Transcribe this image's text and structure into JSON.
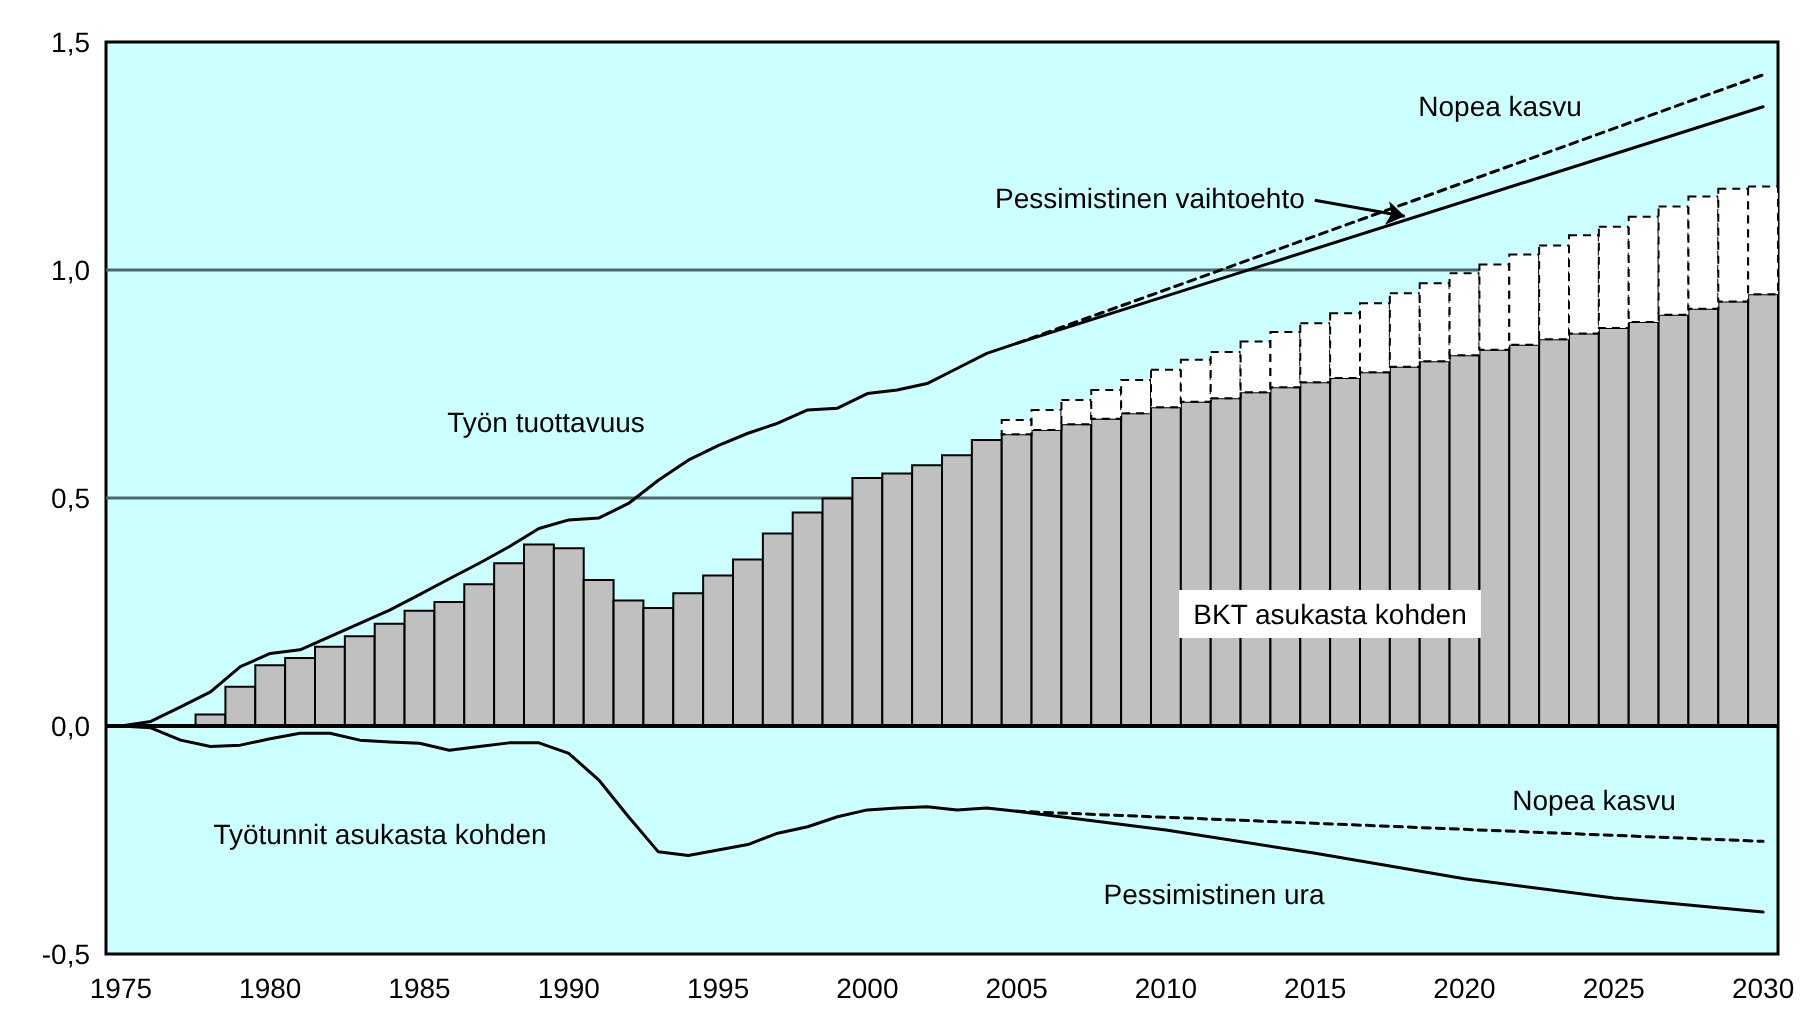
{
  "chart_data": {
    "type": "bar",
    "stacked": true,
    "xlim": [
      1974.5,
      2030.5
    ],
    "xticks": [
      1975,
      1980,
      1985,
      1990,
      1995,
      2000,
      2005,
      2010,
      2015,
      2020,
      2025,
      2030
    ],
    "ylim": [
      -0.5,
      1.5
    ],
    "yticks": [
      {
        "value": -0.5,
        "label": "-0,5"
      },
      {
        "value": 0,
        "label": "0,0"
      },
      {
        "value": 0.5,
        "label": "0,5"
      },
      {
        "value": 1,
        "label": "1,0"
      },
      {
        "value": 1.5,
        "label": "1,5"
      }
    ],
    "grid": "y",
    "marker": "none",
    "x": [
      1978,
      1979,
      1980,
      1981,
      1982,
      1983,
      1984,
      1985,
      1986,
      1987,
      1988,
      1989,
      1990,
      1991,
      1992,
      1993,
      1994,
      1995,
      1996,
      1997,
      1998,
      1999,
      2000,
      2001,
      2002,
      2003,
      2004,
      2005,
      2006,
      2007,
      2008,
      2009,
      2010,
      2011,
      2012,
      2013,
      2014,
      2015,
      2016,
      2017,
      2018,
      2019,
      2020,
      2021,
      2022,
      2023,
      2024,
      2025,
      2026,
      2027,
      2028,
      2029,
      2030
    ],
    "ref_lines": [
      {
        "axis": "y",
        "value": 0,
        "color": "#000000"
      }
    ],
    "series": [
      {
        "color": "#c0c0c0",
        "values": [
          0.025,
          0.086,
          0.133,
          0.149,
          0.174,
          0.197,
          0.224,
          0.253,
          0.272,
          0.311,
          0.357,
          0.398,
          0.39,
          0.32,
          0.275,
          0.259,
          0.291,
          0.33,
          0.365,
          0.422,
          0.468,
          0.499,
          0.544,
          0.554,
          0.572,
          0.594,
          0.627,
          0.64,
          0.649,
          0.662,
          0.674,
          0.686,
          0.699,
          0.711,
          0.719,
          0.732,
          0.743,
          0.754,
          0.763,
          0.776,
          0.788,
          0.8,
          0.813,
          0.825,
          0.836,
          0.848,
          0.861,
          0.873,
          0.886,
          0.902,
          0.915,
          0.931,
          0.947
        ]
      },
      {
        "type": "bar",
        "color": "#ffffff",
        "line_style": "dashed",
        "values": [
          null,
          null,
          null,
          null,
          null,
          null,
          null,
          null,
          null,
          null,
          null,
          null,
          null,
          null,
          null,
          null,
          null,
          null,
          null,
          null,
          null,
          null,
          null,
          null,
          null,
          null,
          null,
          0.031,
          0.044,
          0.053,
          0.063,
          0.073,
          0.082,
          0.092,
          0.101,
          0.111,
          0.121,
          0.129,
          0.142,
          0.151,
          0.161,
          0.171,
          0.18,
          0.187,
          0.198,
          0.206,
          0.215,
          0.222,
          0.231,
          0.237,
          0.246,
          0.247,
          0.236
        ]
      },
      {
        "type": "line",
        "color": "#000000",
        "line_style": "solid",
        "x": [
          1975,
          1976,
          1977,
          1978,
          1979,
          1980,
          1981,
          1982,
          1983,
          1984,
          1985,
          1986,
          1987,
          1988,
          1989,
          1990,
          1991,
          1992,
          1993,
          1994,
          1995,
          1996,
          1997,
          1998,
          1999,
          2000,
          2001,
          2002,
          2003,
          2004,
          2005,
          2030
        ],
        "values": [
          0,
          0.01,
          0.042,
          0.075,
          0.13,
          0.159,
          0.167,
          0.196,
          0.225,
          0.254,
          0.288,
          0.323,
          0.357,
          0.393,
          0.433,
          0.452,
          0.456,
          0.488,
          0.539,
          0.583,
          0.615,
          0.642,
          0.664,
          0.693,
          0.697,
          0.729,
          0.737,
          0.751,
          0.784,
          0.817,
          0.839,
          1.358
        ]
      },
      {
        "type": "line",
        "color": "#000000",
        "line_style": "dashed",
        "x": [
          2005,
          2030
        ],
        "values": [
          0.839,
          1.428
        ]
      },
      {
        "type": "line",
        "color": "#000000",
        "line_style": "solid",
        "x": [
          1975,
          1976,
          1977,
          1978,
          1979,
          1980,
          1981,
          1982,
          1983,
          1984,
          1985,
          1986,
          1987,
          1988,
          1989,
          1990,
          1991,
          1992,
          1993,
          1994,
          1995,
          1996,
          1997,
          1998,
          1999,
          2000,
          2001,
          2002,
          2003,
          2004,
          2005,
          2010,
          2015,
          2020,
          2025,
          2030
        ],
        "values": [
          0,
          -0.004,
          -0.031,
          -0.045,
          -0.042,
          -0.028,
          -0.016,
          -0.016,
          -0.031,
          -0.035,
          -0.038,
          -0.053,
          -0.045,
          -0.037,
          -0.037,
          -0.06,
          -0.118,
          -0.199,
          -0.276,
          -0.284,
          -0.272,
          -0.26,
          -0.235,
          -0.221,
          -0.199,
          -0.184,
          -0.18,
          -0.177,
          -0.184,
          -0.18,
          -0.187,
          -0.228,
          -0.279,
          -0.335,
          -0.377,
          -0.408
        ]
      },
      {
        "type": "line",
        "color": "#000000",
        "line_style": "dashed",
        "x": [
          2005,
          2030
        ],
        "values": [
          -0.187,
          -0.253
        ]
      }
    ],
    "annotations": [
      "Nopea kasvu",
      {
        "text": "Pessimistinen vaihtoehto",
        "x": 2018,
        "y": 1.118
      },
      "Työn tuottavuus",
      "BKT asukasta kohden",
      "Työtunnit asukasta kohden",
      "Nopea kasvu",
      "Pessimistinen ura"
    ]
  }
}
